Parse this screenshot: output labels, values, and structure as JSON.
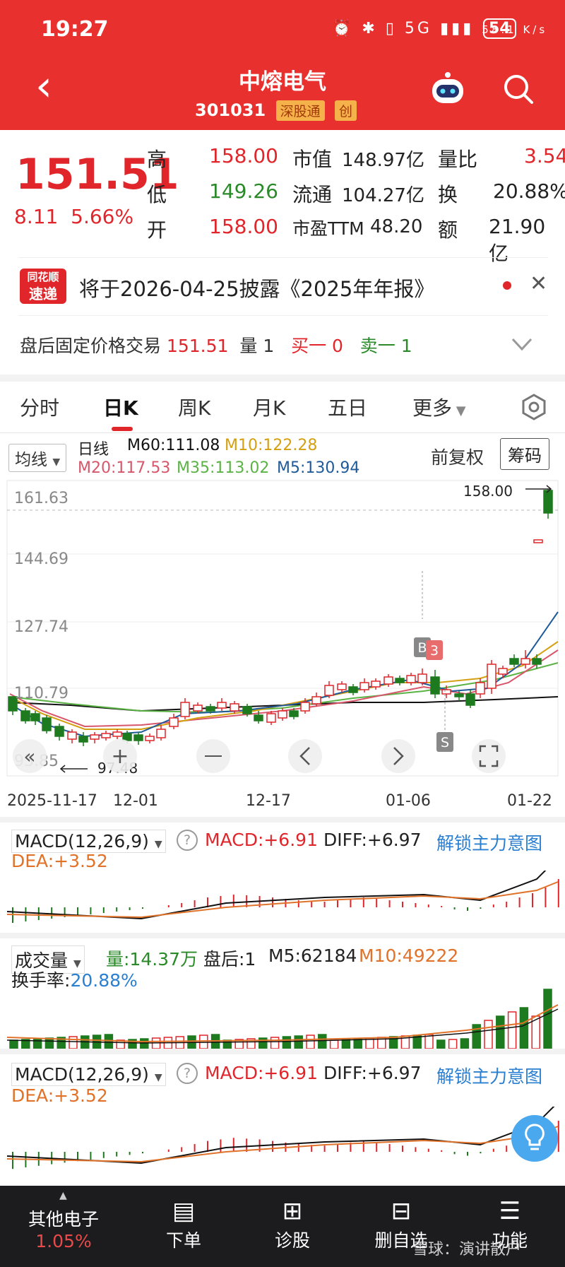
{
  "status": {
    "time": "19:27",
    "net_speed": "58.1 K/s",
    "icons": "⏰ ✱ ▯ 5G ▮▮▮",
    "battery": "54"
  },
  "header": {
    "title": "中熔电气",
    "code": "301031",
    "tag1": "深股通",
    "tag2": "创"
  },
  "quote": {
    "price": "151.51",
    "change": "8.11",
    "change_pct": "5.66%",
    "high_label": "高",
    "high": "158.00",
    "low_label": "低",
    "low": "149.26",
    "open_label": "开",
    "open": "158.00",
    "mcap_label": "市值",
    "mcap": "148.97亿",
    "float_label": "流通",
    "float": "104.27亿",
    "pe_label": "市盈TTM",
    "pe": "48.20",
    "vr_label": "量比",
    "vr": "3.54",
    "turn_label": "换",
    "turn": "20.88%",
    "amt_label": "额",
    "amt": "21.90亿"
  },
  "announcement": {
    "logo_top": "同花顺",
    "logo_bottom": "速递",
    "text": "将于2026-04-25披露《2025年年报》"
  },
  "after_hours": {
    "label": "盘后固定价格交易",
    "price": "151.51",
    "vol_label": "量",
    "vol": "1",
    "buy_label": "买一",
    "buy": "0",
    "sell_label": "卖一",
    "sell": "1"
  },
  "tabs": [
    "分时",
    "日K",
    "周K",
    "月K",
    "五日",
    "更多"
  ],
  "legend": {
    "ma_btn": "均线",
    "period": "日线",
    "m60": "M60:111.08",
    "m10": "M10:122.28",
    "m20": "M20:117.53",
    "m35": "M35:113.02",
    "m5": "M5:130.94",
    "fuquan": "前复权",
    "chouma": "筹码"
  },
  "chart_data": {
    "type": "candlestick",
    "y_ticks": [
      "161.63",
      "144.69",
      "127.74",
      "110.79",
      "93.85"
    ],
    "x_ticks": [
      "2025-11-17",
      "12-01",
      "12-17",
      "01-06",
      "01-22"
    ],
    "high_marker": "158.00",
    "low_marker": "97.48",
    "b_label": "B",
    "three_label": "3",
    "s_label": "S",
    "colors": {
      "up": "#e0262b",
      "down": "#1e7a1e",
      "m5": "#1f5a99",
      "m10": "#d4a012",
      "m20": "#d8566a",
      "m35": "#5bb345",
      "m60": "#111111"
    }
  },
  "macd1": {
    "title": "MACD(12,26,9)",
    "macd": "MACD:+6.91",
    "diff": "DIFF:+6.97",
    "dea": "DEA:+3.52",
    "unlock": "解锁主力意图"
  },
  "volume": {
    "title": "成交量",
    "vol": "量:14.37万",
    "after": "盘后:1",
    "m5": "M5:62184",
    "m10": "M10:49222",
    "turn_label": "换手率:",
    "turn": "20.88%"
  },
  "macd2": {
    "title": "MACD(12,26,9)",
    "macd": "MACD:+6.91",
    "diff": "DIFF:+6.97",
    "dea": "DEA:+3.52",
    "unlock": "解锁主力意图"
  },
  "bottom": {
    "sector": "其他电子",
    "sector_pct": "1.05%",
    "order": "下单",
    "diagnose": "诊股",
    "delete": "删自选",
    "func": "功能",
    "watermark": "雪球：演讲散户"
  }
}
